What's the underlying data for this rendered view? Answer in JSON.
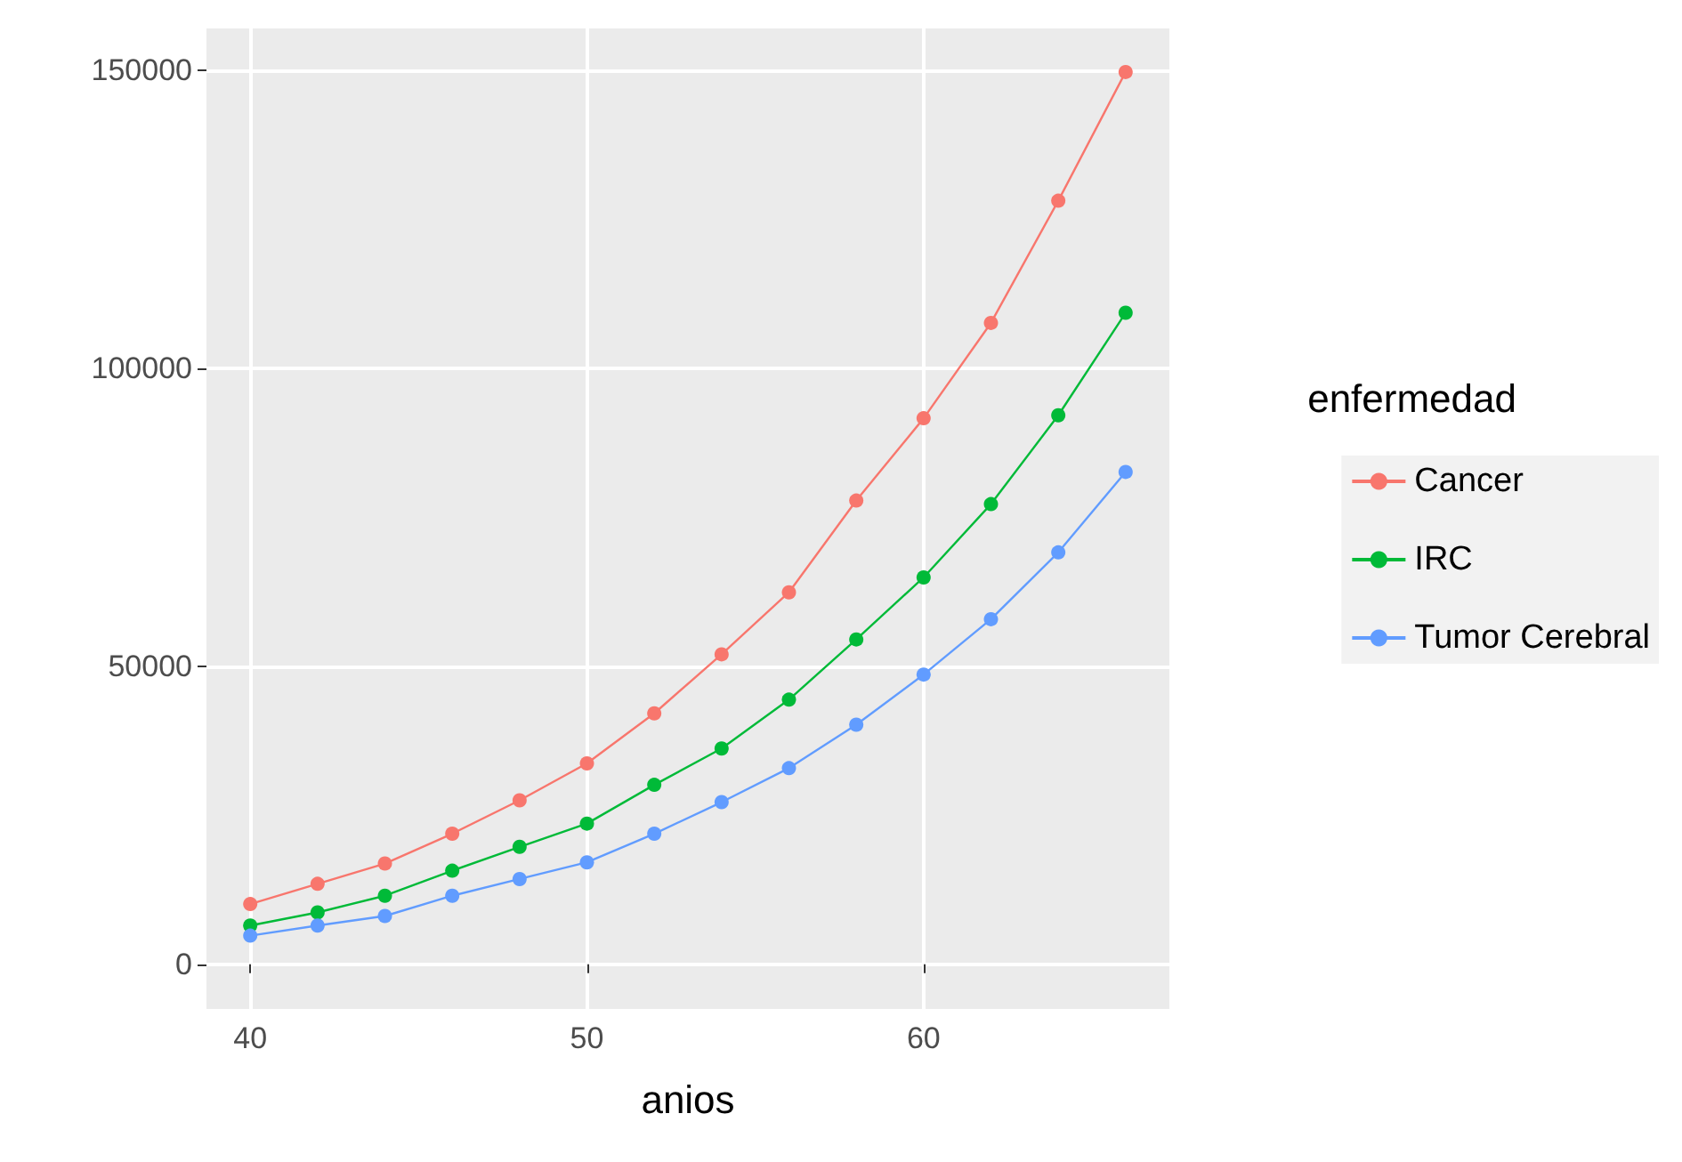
{
  "chart_data": {
    "type": "line",
    "xlabel": "anios",
    "legend_title": "enfermedad",
    "x": [
      40,
      42,
      44,
      46,
      48,
      50,
      52,
      54,
      56,
      58,
      60,
      62,
      64,
      66
    ],
    "series": [
      {
        "name": "Cancer",
        "color": "#f8766d",
        "values": [
          10100,
          13500,
          16900,
          21900,
          27500,
          33700,
          42100,
          52000,
          62400,
          77800,
          91600,
          107600,
          128100,
          149700
        ]
      },
      {
        "name": "IRC",
        "color": "#00ba38",
        "values": [
          6500,
          8700,
          11500,
          15700,
          19700,
          23600,
          30100,
          36200,
          44400,
          54500,
          64900,
          77200,
          92100,
          109300
        ]
      },
      {
        "name": "Tumor Cerebral",
        "color": "#619cff",
        "values": [
          4800,
          6500,
          8100,
          11500,
          14300,
          17100,
          21900,
          27200,
          32900,
          40200,
          48600,
          57900,
          69100,
          82600
        ]
      }
    ],
    "xlim": [
      38.7,
      67.3
    ],
    "ylim": [
      -7500,
      157000
    ],
    "xticks": [
      40,
      50,
      60
    ],
    "yticks": [
      0,
      50000,
      100000,
      150000
    ],
    "grid": true,
    "legend": "right",
    "marker": "circle",
    "line_style": "solid"
  }
}
